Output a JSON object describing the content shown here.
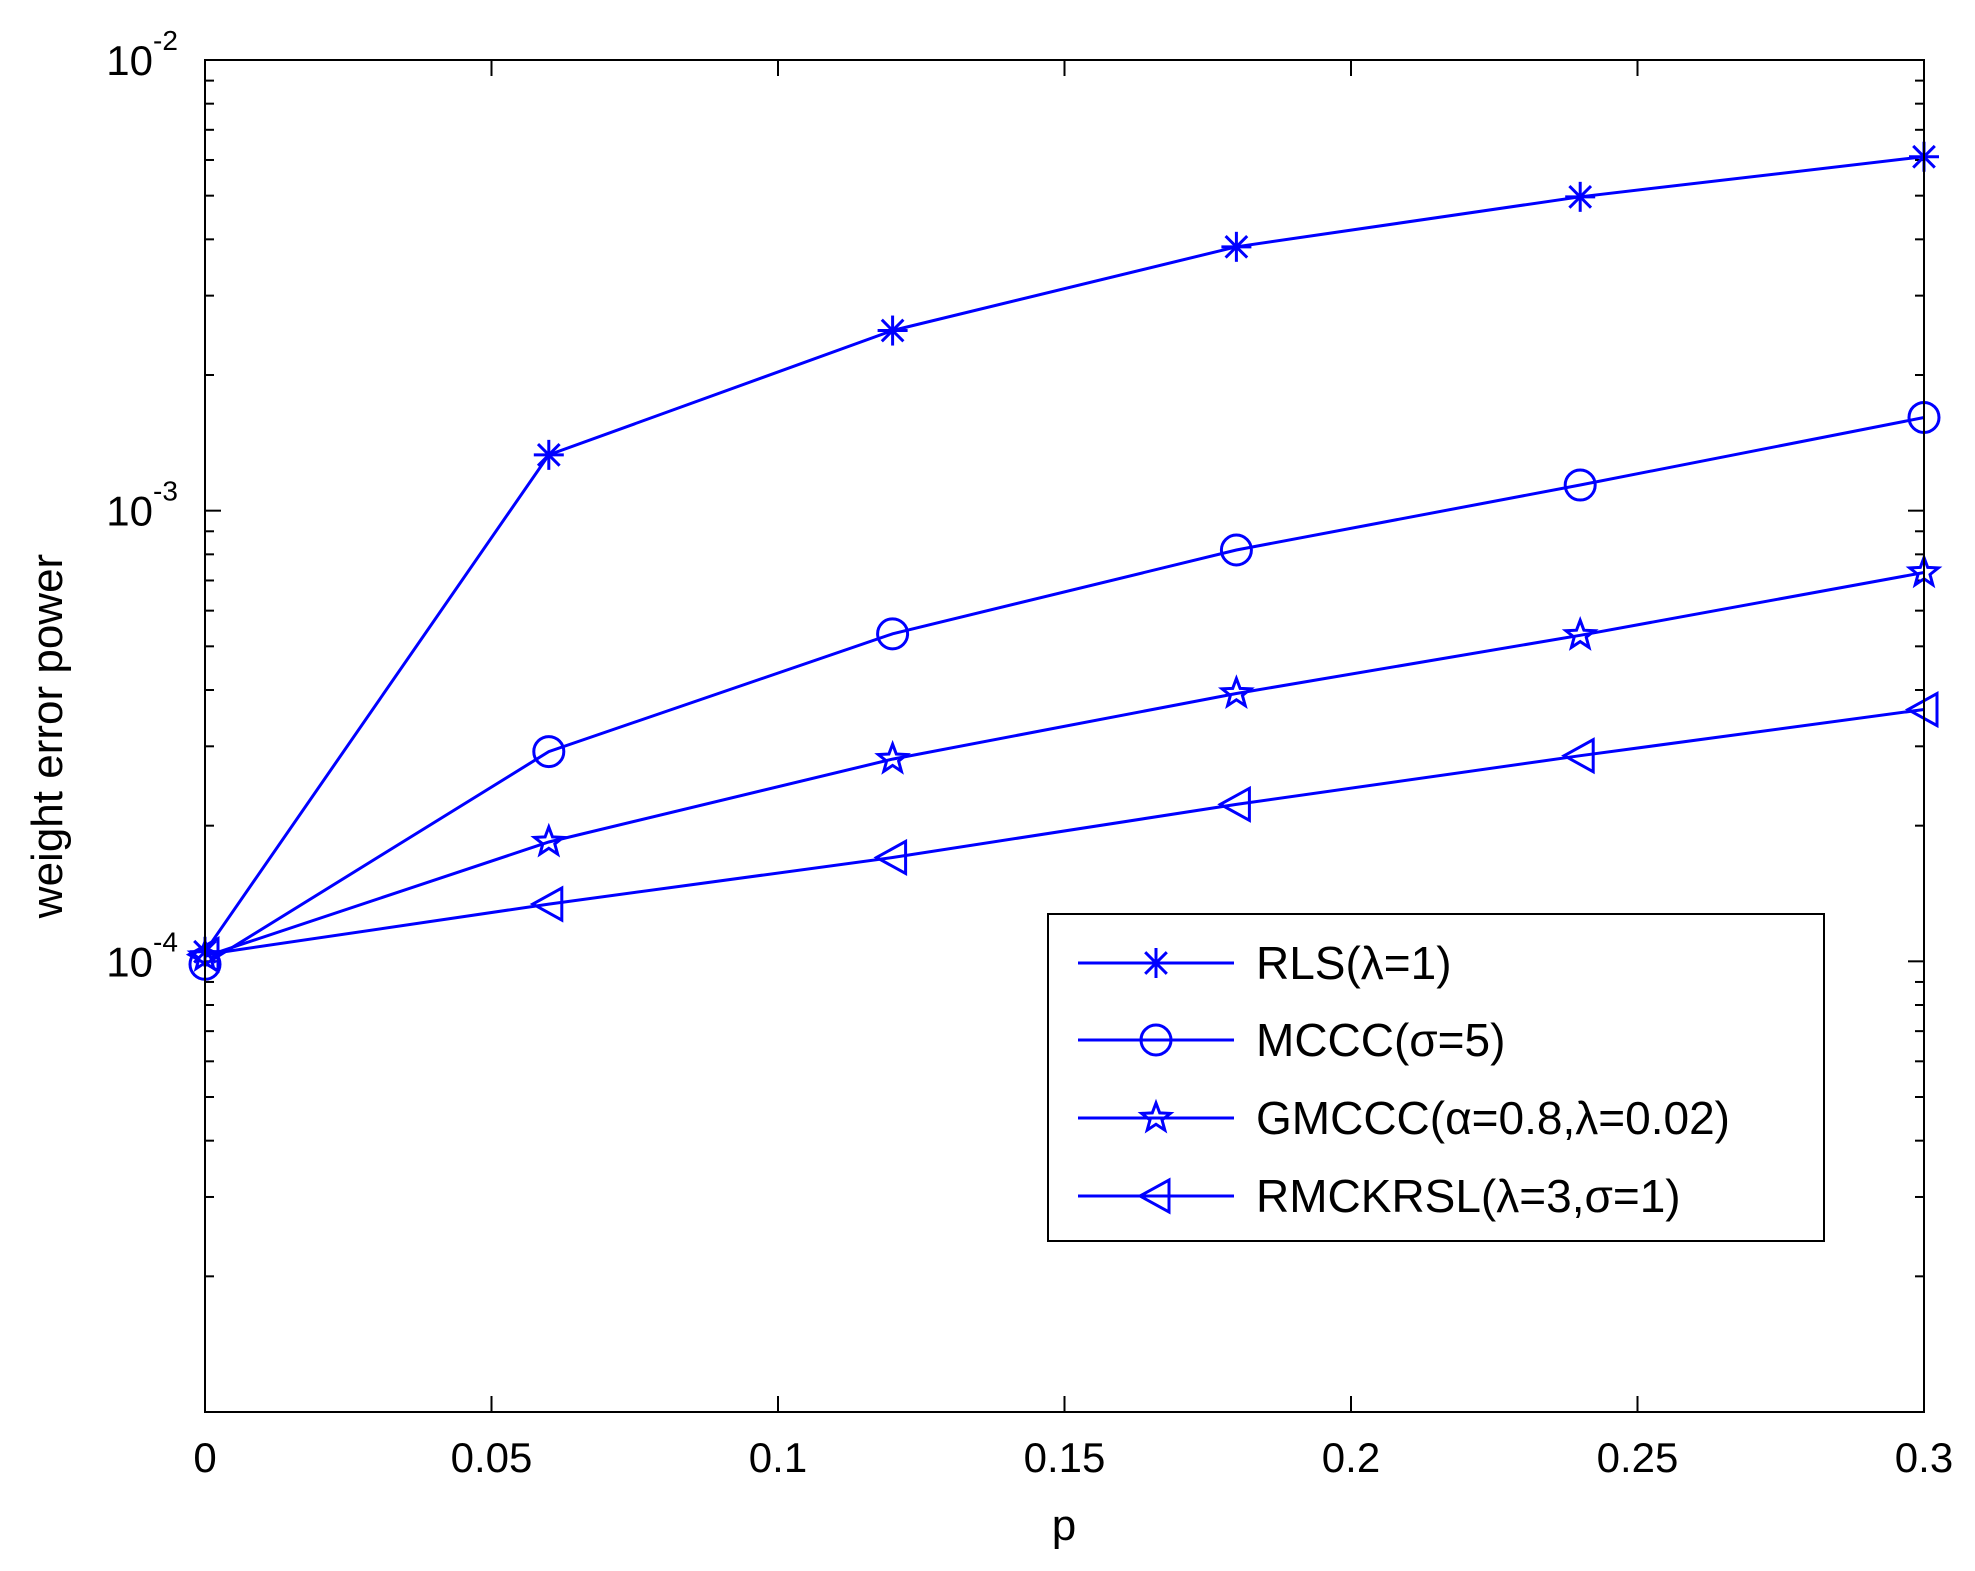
{
  "chart_data": {
    "type": "line",
    "xlabel": "p",
    "ylabel": "weight error power",
    "xlim": [
      0,
      0.3
    ],
    "ylim": [
      1e-05,
      0.01
    ],
    "yscale": "log",
    "xticks": [
      {
        "value": 0,
        "label": "0"
      },
      {
        "value": 0.05,
        "label": "0.05"
      },
      {
        "value": 0.1,
        "label": "0.1"
      },
      {
        "value": 0.15,
        "label": "0.15"
      },
      {
        "value": 0.2,
        "label": "0.2"
      },
      {
        "value": 0.25,
        "label": "0.25"
      },
      {
        "value": 0.3,
        "label": "0.3"
      }
    ],
    "yticks": [
      {
        "value": 0.0001,
        "base": "10",
        "exp": "-4"
      },
      {
        "value": 0.001,
        "base": "10",
        "exp": "-3"
      },
      {
        "value": 0.01,
        "base": "10",
        "exp": "-2"
      }
    ],
    "grid": false,
    "legend_position": "lower-right",
    "color": "#0000ff",
    "x": [
      0,
      0.06,
      0.12,
      0.18,
      0.24,
      0.3
    ],
    "series": [
      {
        "name": "RLS(λ=1)",
        "marker": "asterisk",
        "values": [
          0.000105,
          0.00133,
          0.00251,
          0.00385,
          0.00497,
          0.0061
        ]
      },
      {
        "name": "MCCC(σ=5)",
        "marker": "circle",
        "values": [
          9.85e-05,
          0.000292,
          0.000533,
          0.000818,
          0.00114,
          0.00161
        ]
      },
      {
        "name": "GMCCC(α=0.8,λ=0.02)",
        "marker": "star",
        "values": [
          0.0001025,
          0.000184,
          0.000281,
          0.000393,
          0.000529,
          0.000729
        ]
      },
      {
        "name": "RMCKRSL(λ=3,σ=1)",
        "marker": "triangle-left",
        "values": [
          0.0001035,
          0.000134,
          0.00017,
          0.000223,
          0.000286,
          0.000362
        ]
      }
    ]
  }
}
